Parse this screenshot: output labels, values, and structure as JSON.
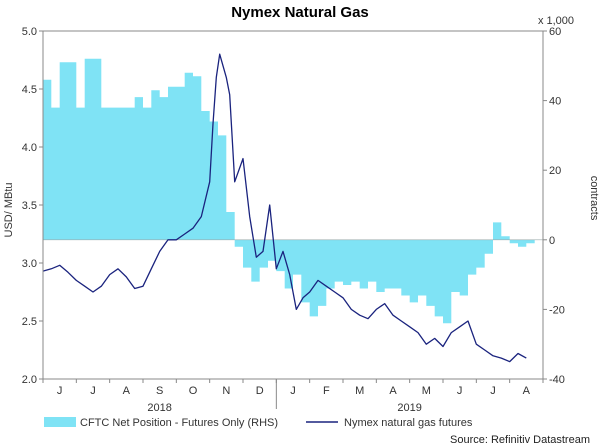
{
  "chart_data": {
    "type": "area+line",
    "title": "Nymex Natural Gas",
    "source": "Source: Refinitiv Datastream",
    "left_axis": {
      "label": "USD/ MBtu",
      "ylim": [
        2.0,
        5.0
      ],
      "ticks": [
        "5.0",
        "4.5",
        "4.0",
        "3.5",
        "3.0",
        "2.5",
        "2.0"
      ]
    },
    "right_axis": {
      "label": "contracts",
      "unit": "x 1,000",
      "ylim": [
        -40,
        60
      ],
      "ticks": [
        "60",
        "40",
        "20",
        "0",
        "-20",
        "-40"
      ]
    },
    "x_months": [
      "J",
      "J",
      "A",
      "S",
      "O",
      "N",
      "D",
      "J",
      "F",
      "M",
      "A",
      "M",
      "J",
      "J",
      "A"
    ],
    "x_years": [
      "2018",
      "2019"
    ],
    "grid": false,
    "legend_position": "bottom",
    "series": [
      {
        "name": "CFTC Net Position - Futures Only (RHS)",
        "kind": "area",
        "axis": "right",
        "color": "#7fe3f5",
        "x": [
          0,
          0.25,
          0.5,
          0.75,
          1,
          1.25,
          1.5,
          1.75,
          2,
          2.25,
          2.5,
          2.75,
          3,
          3.25,
          3.5,
          3.75,
          4,
          4.25,
          4.5,
          4.75,
          5,
          5.25,
          5.5,
          5.75,
          6,
          6.25,
          6.5,
          6.75,
          7,
          7.25,
          7.5,
          7.75,
          8,
          8.25,
          8.5,
          8.75,
          9,
          9.25,
          9.5,
          9.75,
          10,
          10.25,
          10.5,
          10.75,
          11,
          11.25,
          11.5,
          11.75,
          12,
          12.25,
          12.5,
          12.75,
          13,
          13.25,
          13.5,
          13.75,
          14,
          14.25,
          14.5
        ],
        "values": [
          46,
          38,
          51,
          51,
          38,
          52,
          52,
          38,
          38,
          38,
          38,
          41,
          38,
          43,
          41,
          44,
          44,
          48,
          47,
          37,
          34,
          30,
          8,
          -2,
          -8,
          -12,
          -8,
          -6,
          -9,
          -14,
          -10,
          -18,
          -22,
          -19,
          -14,
          -12,
          -13,
          -12,
          -14,
          -12,
          -15,
          -14,
          -14,
          -16,
          -18,
          -16,
          -19,
          -22,
          -24,
          -15,
          -16,
          -10,
          -8,
          -4,
          5,
          1,
          -1,
          -2,
          -1
        ]
      },
      {
        "name": "Nymex natural gas futures",
        "kind": "line",
        "axis": "left",
        "color": "#1a237e",
        "x": [
          0,
          0.25,
          0.5,
          0.75,
          1,
          1.25,
          1.5,
          1.75,
          2,
          2.25,
          2.5,
          2.75,
          3,
          3.25,
          3.5,
          3.75,
          4,
          4.25,
          4.5,
          4.75,
          5,
          5.1,
          5.2,
          5.3,
          5.4,
          5.5,
          5.6,
          5.75,
          6,
          6.2,
          6.4,
          6.6,
          6.8,
          7,
          7.2,
          7.4,
          7.6,
          7.8,
          8,
          8.25,
          8.5,
          8.75,
          9,
          9.25,
          9.5,
          9.75,
          10,
          10.25,
          10.5,
          10.75,
          11,
          11.25,
          11.5,
          11.75,
          12,
          12.25,
          12.5,
          12.75,
          13,
          13.25,
          13.5,
          13.75,
          14,
          14.25,
          14.5
        ],
        "values": [
          2.93,
          2.95,
          2.98,
          2.92,
          2.85,
          2.8,
          2.75,
          2.8,
          2.9,
          2.95,
          2.88,
          2.78,
          2.8,
          2.95,
          3.1,
          3.2,
          3.2,
          3.25,
          3.3,
          3.4,
          3.7,
          4.2,
          4.6,
          4.8,
          4.7,
          4.6,
          4.45,
          3.7,
          3.9,
          3.4,
          3.05,
          3.1,
          3.5,
          2.95,
          3.1,
          2.9,
          2.6,
          2.7,
          2.75,
          2.85,
          2.8,
          2.75,
          2.7,
          2.6,
          2.55,
          2.52,
          2.6,
          2.65,
          2.55,
          2.5,
          2.45,
          2.4,
          2.3,
          2.35,
          2.28,
          2.4,
          2.45,
          2.5,
          2.3,
          2.25,
          2.2,
          2.18,
          2.15,
          2.22,
          2.18
        ]
      }
    ]
  }
}
